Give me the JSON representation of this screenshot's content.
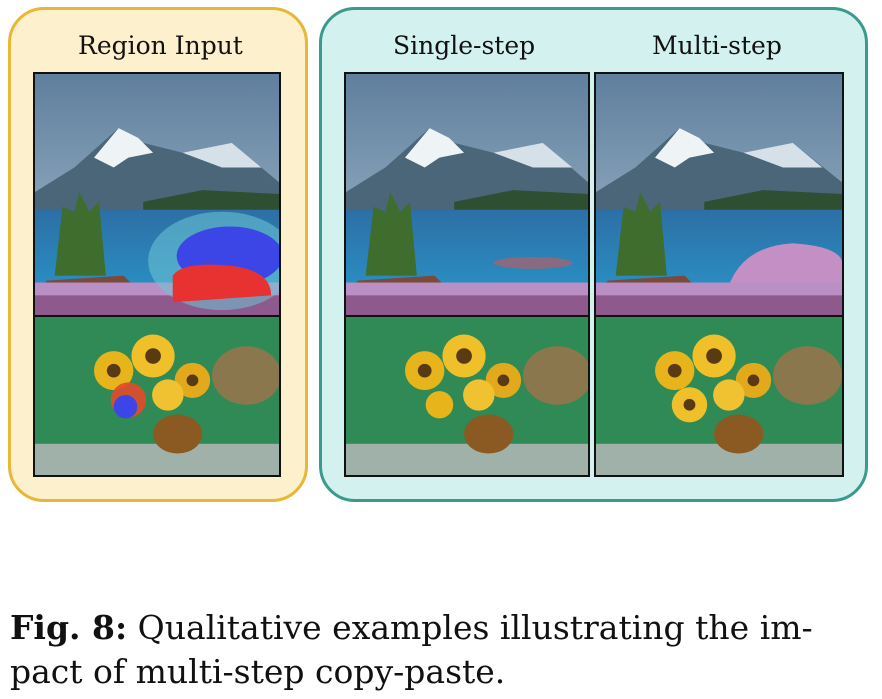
{
  "figure": {
    "columns": {
      "region_input": "Region Input",
      "single_step": "Single-step",
      "multi_step": "Multi-step"
    },
    "rows": [
      "mountain-lake-painting",
      "sunflower-vase-painting"
    ],
    "colors": {
      "region_panel_fill": "#fdf0cd",
      "region_panel_border": "#e7b735",
      "output_panel_fill": "#d3f2ef",
      "output_panel_border": "#3a9a8e",
      "mask_blue": "#3c46e6",
      "mask_red": "#e83232"
    }
  },
  "caption": {
    "label": "Fig. 8:",
    "line1": "Qualitative examples illustrating the im-",
    "line2": "pact of multi-step copy-paste."
  }
}
